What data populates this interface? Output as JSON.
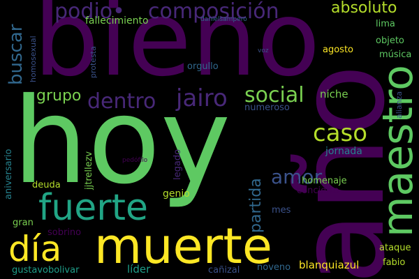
{
  "words": {
    "hoy": "hoy",
    "bieno": "bieno",
    "ano": "año",
    "muerte": "muerte",
    "fuerte": "fuerte",
    "dia": "día",
    "maestro": "maestro",
    "podio": "podio•",
    "composicion": "composición",
    "absoluto": "absoluto",
    "buscar": "buscar",
    "dentro": "dentro",
    "jairo": "jairo",
    "social": "social",
    "caso": "caso",
    "amor": "amor",
    "grupo": "grupo",
    "partida": "partida",
    "fallecimiento": "fallecimiento",
    "danielsampero": "danielsampero",
    "objeto": "objeto",
    "lima": "lima",
    "musica": "música",
    "agosto": "agosto",
    "voz": "voz",
    "orgullo": "orgullo",
    "homosexual": "homosexual",
    "protesta": "protesta",
    "niche": "niche",
    "alianza": "alianza",
    "numeroso": "numeroso",
    "jornada": "jornada",
    "aniversario": "aniversario",
    "jjtrellezv": "jjtrellezv",
    "pedofilo": "pedófilo",
    "legado": "legado",
    "homenaje": "homenaje",
    "deuda": "deuda",
    "concierto": "concierto",
    "genio": "genio",
    "mes": "mes",
    "gran": "gran",
    "sobrino": "sobrino",
    "ataque": "ataque",
    "blanquiazul": "blanquiazul",
    "fabio": "fabio",
    "gustavobolivar": "gustavobolivar",
    "lider": "líder",
    "canizal": "cañizal",
    "noveno": "noveno"
  },
  "colors": {
    "green_bright": "#5ec962",
    "green_light": "#7ad151",
    "teal": "#21a585",
    "teal_dark": "#1f9e89",
    "yellow": "#fde725",
    "yellow_green": "#b5de2b",
    "purple_dark": "#440154",
    "purple": "#482878",
    "indigo": "#3b528b",
    "blue": "#31688e",
    "slate": "#26828e"
  }
}
